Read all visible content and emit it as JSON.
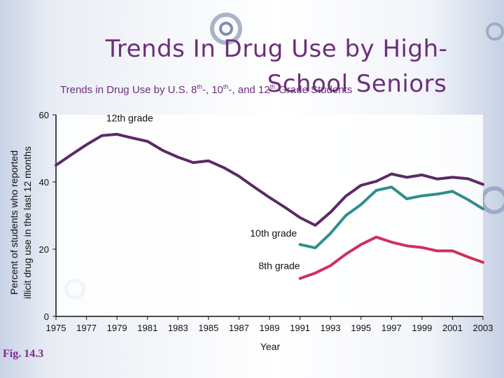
{
  "slide": {
    "title_line1": "Trends In Drug Use by High-",
    "title_line2": "School Seniors",
    "subtitle_parts": [
      "Trends in Drug Use by U.S. 8",
      "th",
      "-, 10",
      "th",
      "-, and 12",
      "th",
      "-Grade Students"
    ],
    "figure_label": "Fig. 14.3"
  },
  "colors": {
    "title": "#6d2f7a",
    "grade12": "#5b2a66",
    "grade10": "#2f8f8c",
    "grade8": "#d0305c"
  },
  "chart_data": {
    "type": "line",
    "title": "",
    "xlabel": "Year",
    "ylabel_lines": [
      "Percent of students who reported",
      "illicit drug use in the last 12 months"
    ],
    "xlim": [
      1975,
      2003
    ],
    "ylim": [
      0,
      60
    ],
    "xticks": [
      "1975",
      "1977",
      "1979",
      "1981",
      "1983",
      "1985",
      "1987",
      "1989",
      "1991",
      "1993",
      "1995",
      "1997",
      "1999",
      "2001",
      "2003"
    ],
    "yticks": [
      "0",
      "20",
      "40",
      "60"
    ],
    "series": [
      {
        "name": "12th grade",
        "color": "#5b2a66",
        "x": [
          1975,
          1976,
          1977,
          1978,
          1979,
          1980,
          1981,
          1982,
          1983,
          1984,
          1985,
          1986,
          1987,
          1988,
          1989,
          1990,
          1991,
          1992,
          1993,
          1994,
          1995,
          1996,
          1997,
          1998,
          1999,
          2000,
          2001,
          2002,
          2003
        ],
        "y": [
          45.0,
          48.1,
          51.1,
          53.8,
          54.2,
          53.1,
          52.1,
          49.4,
          47.4,
          45.8,
          46.3,
          44.3,
          41.7,
          38.5,
          35.4,
          32.5,
          29.4,
          27.1,
          31.0,
          35.8,
          39.0,
          40.2,
          42.4,
          41.4,
          42.1,
          40.9,
          41.4,
          41.0,
          39.3
        ]
      },
      {
        "name": "10th grade",
        "color": "#2f8f8c",
        "x": [
          1991,
          1992,
          1993,
          1994,
          1995,
          1996,
          1997,
          1998,
          1999,
          2000,
          2001,
          2002,
          2003
        ],
        "y": [
          21.4,
          20.4,
          24.7,
          30.0,
          33.3,
          37.5,
          38.5,
          35.0,
          35.9,
          36.4,
          37.2,
          34.8,
          32.0
        ]
      },
      {
        "name": "8th grade",
        "color": "#d0305c",
        "x": [
          1991,
          1992,
          1993,
          1994,
          1995,
          1996,
          1997,
          1998,
          1999,
          2000,
          2001,
          2002,
          2003
        ],
        "y": [
          11.3,
          12.9,
          15.1,
          18.5,
          21.4,
          23.6,
          22.1,
          21.0,
          20.5,
          19.5,
          19.5,
          17.7,
          16.1
        ]
      }
    ]
  }
}
